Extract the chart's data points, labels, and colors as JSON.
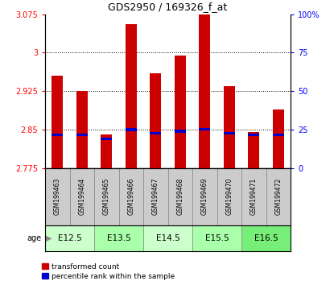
{
  "title": "GDS2950 / 169326_f_at",
  "samples": [
    "GSM199463",
    "GSM199464",
    "GSM199465",
    "GSM199466",
    "GSM199467",
    "GSM199468",
    "GSM199469",
    "GSM199470",
    "GSM199471",
    "GSM199472"
  ],
  "red_values": [
    2.955,
    2.925,
    2.84,
    3.055,
    2.96,
    2.995,
    3.075,
    2.935,
    2.845,
    2.89
  ],
  "blue_values": [
    2.84,
    2.84,
    2.832,
    2.85,
    2.843,
    2.847,
    2.851,
    2.843,
    2.84,
    2.84
  ],
  "base_value": 2.775,
  "ylim_min": 2.775,
  "ylim_max": 3.075,
  "yticks": [
    2.775,
    2.85,
    2.925,
    3.0,
    3.075
  ],
  "ytick_labels": [
    "2.775",
    "2.85",
    "2.925",
    "3",
    "3.075"
  ],
  "right_yticks": [
    0,
    25,
    50,
    75,
    100
  ],
  "right_ytick_labels": [
    "0",
    "25",
    "50",
    "75",
    "100%"
  ],
  "age_groups": [
    {
      "label": "E12.5",
      "start": 0,
      "end": 2,
      "color": "#ccffcc"
    },
    {
      "label": "E13.5",
      "start": 2,
      "end": 4,
      "color": "#aaffaa"
    },
    {
      "label": "E14.5",
      "start": 4,
      "end": 6,
      "color": "#ccffcc"
    },
    {
      "label": "E15.5",
      "start": 6,
      "end": 8,
      "color": "#aaffaa"
    },
    {
      "label": "E16.5",
      "start": 8,
      "end": 10,
      "color": "#77ee77"
    }
  ],
  "red_color": "#cc0000",
  "blue_color": "#0000cc",
  "bar_width": 0.45,
  "bg_color": "#ffffff",
  "label_area_color": "#cccccc",
  "legend_red": "transformed count",
  "legend_blue": "percentile rank within the sample"
}
